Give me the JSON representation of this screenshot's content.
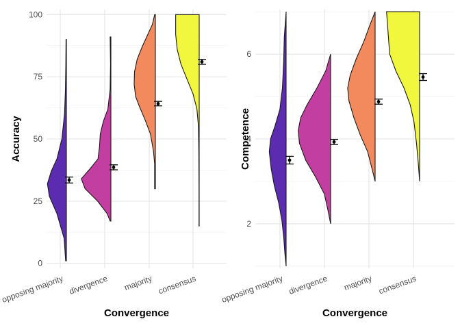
{
  "chart_data": [
    {
      "type": "violin",
      "xlabel": "Convergence",
      "ylabel": "Accuracy",
      "categories": [
        "opposing majority",
        "divergence",
        "majority",
        "consensus"
      ],
      "ylim": [
        -2,
        102
      ],
      "yticks": [
        0,
        25,
        50,
        75,
        100
      ],
      "grid": true,
      "legend": "none",
      "colors": [
        "#5b2bb0",
        "#c23ea0",
        "#f28a5e",
        "#f0f73d"
      ],
      "distributions": [
        {
          "category": "opposing majority",
          "range": [
            1,
            90
          ],
          "density": [
            [
              1,
              0.02
            ],
            [
              10,
              0.06
            ],
            [
              20,
              0.25
            ],
            [
              27,
              0.45
            ],
            [
              32,
              0.5
            ],
            [
              37,
              0.4
            ],
            [
              42,
              0.25
            ],
            [
              50,
              0.12
            ],
            [
              60,
              0.05
            ],
            [
              70,
              0.025
            ],
            [
              80,
              0.015
            ],
            [
              90,
              0.01
            ]
          ]
        },
        {
          "category": "divergence",
          "range": [
            17,
            91
          ],
          "density": [
            [
              17,
              0.02
            ],
            [
              20,
              0.1
            ],
            [
              25,
              0.35
            ],
            [
              30,
              0.68
            ],
            [
              34,
              0.78
            ],
            [
              38,
              0.55
            ],
            [
              42,
              0.34
            ],
            [
              47,
              0.3
            ],
            [
              52,
              0.28
            ],
            [
              57,
              0.2
            ],
            [
              62,
              0.08
            ],
            [
              70,
              0.02
            ],
            [
              80,
              0.01
            ],
            [
              91,
              0.02
            ]
          ]
        },
        {
          "category": "majority",
          "range": [
            30,
            100
          ],
          "density": [
            [
              30,
              0.02
            ],
            [
              40,
              0.02
            ],
            [
              45,
              0.05
            ],
            [
              52,
              0.13
            ],
            [
              58,
              0.28
            ],
            [
              63,
              0.42
            ],
            [
              67,
              0.52
            ],
            [
              72,
              0.56
            ],
            [
              77,
              0.55
            ],
            [
              82,
              0.48
            ],
            [
              87,
              0.35
            ],
            [
              92,
              0.2
            ],
            [
              96,
              0.08
            ],
            [
              100,
              0.02
            ]
          ]
        },
        {
          "category": "consensus",
          "range": [
            15,
            100
          ],
          "density": [
            [
              15,
              0.005
            ],
            [
              30,
              0.005
            ],
            [
              45,
              0.01
            ],
            [
              55,
              0.02
            ],
            [
              62,
              0.06
            ],
            [
              68,
              0.16
            ],
            [
              74,
              0.32
            ],
            [
              80,
              0.48
            ],
            [
              86,
              0.58
            ],
            [
              92,
              0.62
            ],
            [
              97,
              0.62
            ],
            [
              100,
              0.62
            ]
          ]
        }
      ],
      "summary": [
        {
          "category": "opposing majority",
          "mean": 33.5,
          "lower": 32.3,
          "upper": 34.7
        },
        {
          "category": "divergence",
          "mean": 38.6,
          "lower": 37.6,
          "upper": 39.6
        },
        {
          "category": "majority",
          "mean": 64.2,
          "lower": 63.3,
          "upper": 65.1
        },
        {
          "category": "consensus",
          "mean": 81.0,
          "lower": 80.0,
          "upper": 82.0
        }
      ]
    },
    {
      "type": "violin",
      "xlabel": "Convergence",
      "ylabel": "Competence",
      "categories": [
        "opposing majority",
        "divergence",
        "majority",
        "consensus"
      ],
      "ylim": [
        0.95,
        7.05
      ],
      "yticks": [
        2,
        4,
        6
      ],
      "grid": true,
      "legend": "none",
      "colors": [
        "#5b2bb0",
        "#c23ea0",
        "#f28a5e",
        "#f0f73d"
      ],
      "distributions": [
        {
          "category": "opposing majority",
          "range": [
            1,
            7
          ],
          "density": [
            [
              1,
              0.0
            ],
            [
              1.3,
              0.02
            ],
            [
              1.7,
              0.04
            ],
            [
              2.1,
              0.07
            ],
            [
              2.5,
              0.12
            ],
            [
              2.9,
              0.19
            ],
            [
              3.3,
              0.24
            ],
            [
              3.7,
              0.27
            ],
            [
              4.0,
              0.25
            ],
            [
              4.3,
              0.18
            ],
            [
              4.7,
              0.1
            ],
            [
              5.2,
              0.06
            ],
            [
              5.8,
              0.04
            ],
            [
              6.4,
              0.03
            ],
            [
              7,
              0.0
            ]
          ]
        },
        {
          "category": "divergence",
          "range": [
            2,
            6
          ],
          "density": [
            [
              2,
              0.0
            ],
            [
              2.3,
              0.04
            ],
            [
              2.7,
              0.1
            ],
            [
              3.1,
              0.24
            ],
            [
              3.5,
              0.4
            ],
            [
              3.9,
              0.5
            ],
            [
              4.2,
              0.52
            ],
            [
              4.5,
              0.48
            ],
            [
              4.8,
              0.38
            ],
            [
              5.2,
              0.22
            ],
            [
              5.6,
              0.08
            ],
            [
              6,
              0.0
            ]
          ]
        },
        {
          "category": "majority",
          "range": [
            3,
            7
          ],
          "density": [
            [
              3,
              0.0
            ],
            [
              3.3,
              0.05
            ],
            [
              3.7,
              0.12
            ],
            [
              4.1,
              0.24
            ],
            [
              4.5,
              0.34
            ],
            [
              4.9,
              0.42
            ],
            [
              5.2,
              0.44
            ],
            [
              5.5,
              0.4
            ],
            [
              5.9,
              0.3
            ],
            [
              6.3,
              0.18
            ],
            [
              6.7,
              0.08
            ],
            [
              7,
              0.0
            ]
          ]
        },
        {
          "category": "consensus",
          "range": [
            3,
            7
          ],
          "density": [
            [
              3,
              0.0
            ],
            [
              3.4,
              0.02
            ],
            [
              3.9,
              0.05
            ],
            [
              4.4,
              0.09
            ],
            [
              4.8,
              0.15
            ],
            [
              5.2,
              0.25
            ],
            [
              5.6,
              0.38
            ],
            [
              6.0,
              0.48
            ],
            [
              6.4,
              0.5
            ],
            [
              6.8,
              0.52
            ],
            [
              7,
              0.53
            ]
          ]
        }
      ],
      "summary": [
        {
          "category": "opposing majority",
          "mean": 3.5,
          "lower": 3.41,
          "upper": 3.59
        },
        {
          "category": "divergence",
          "mean": 3.93,
          "lower": 3.87,
          "upper": 3.99
        },
        {
          "category": "majority",
          "mean": 4.88,
          "lower": 4.82,
          "upper": 4.94
        },
        {
          "category": "consensus",
          "mean": 5.46,
          "lower": 5.38,
          "upper": 5.54
        }
      ]
    }
  ]
}
